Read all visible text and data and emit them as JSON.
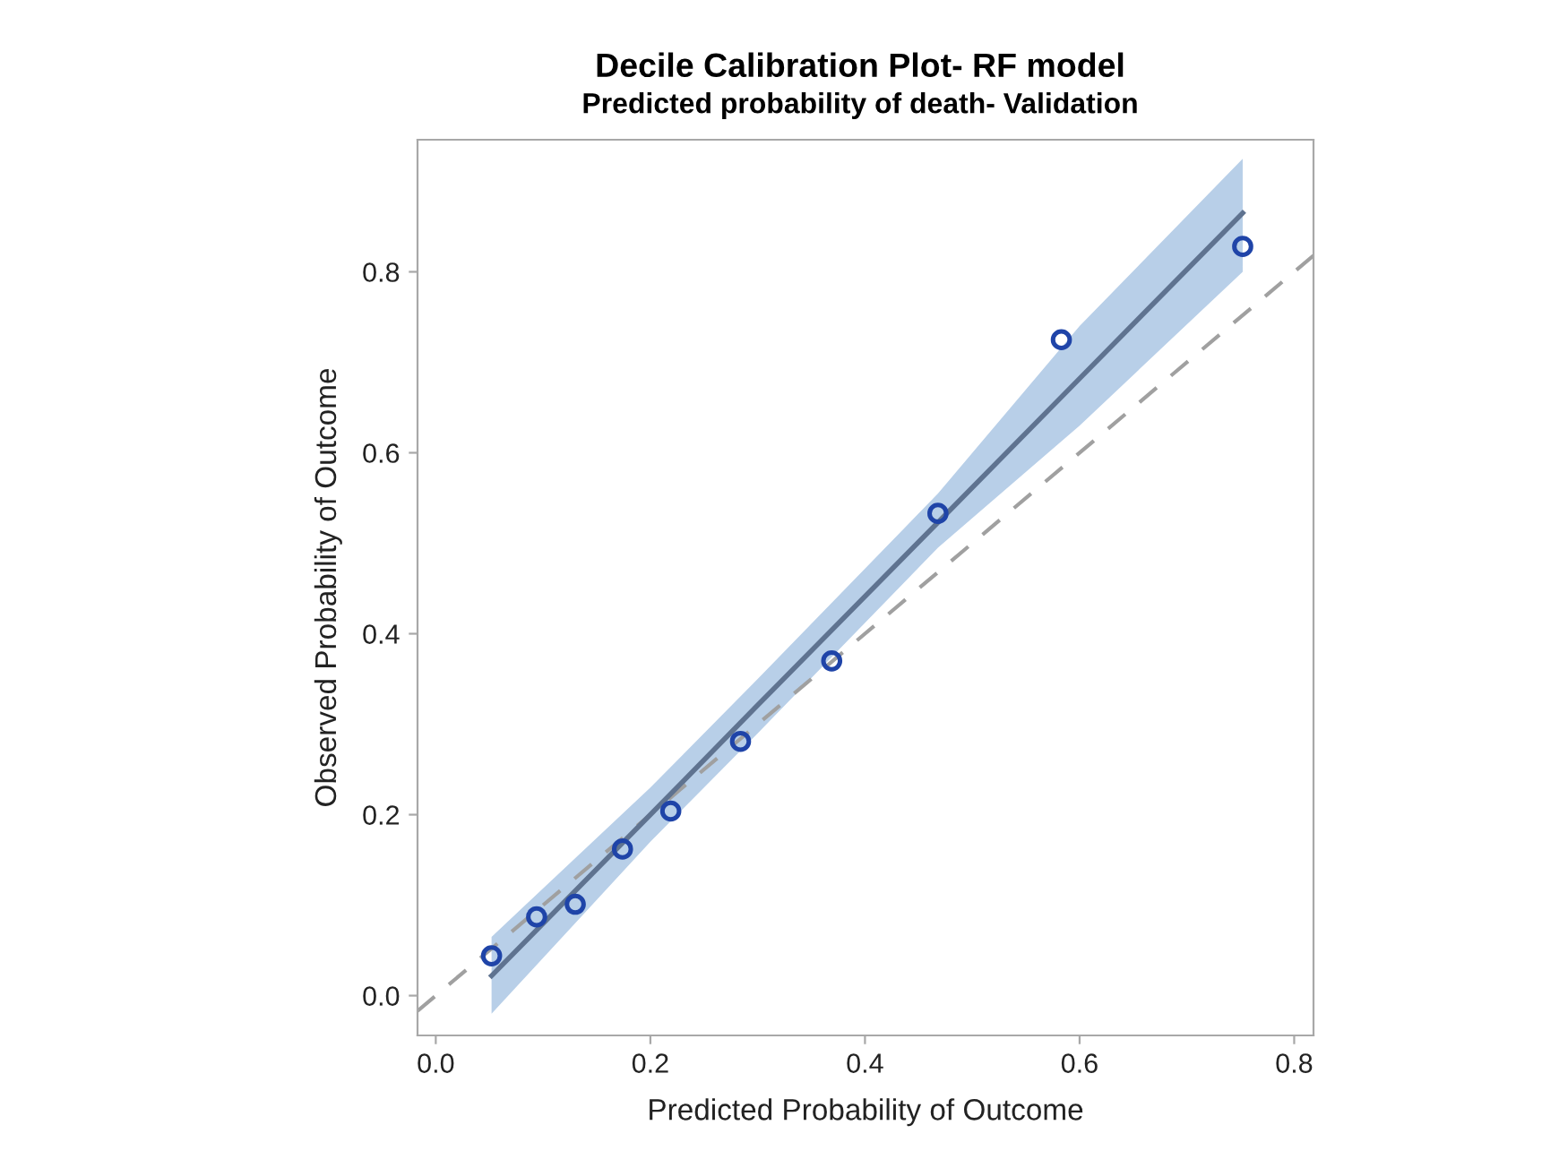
{
  "chart_data": {
    "type": "scatter",
    "title": "Decile Calibration Plot- RF model",
    "subtitle": "Predicted probability of death- Validation",
    "xlabel": "Predicted Probability of Outcome",
    "ylabel": "Observed Probability of Outcome",
    "xlim": [
      -0.017,
      0.818
    ],
    "ylim": [
      -0.044,
      0.946
    ],
    "xticks": [
      {
        "value": 0,
        "label": "0.0"
      },
      0.2,
      0.4,
      0.6,
      0.8
    ],
    "yticks": [
      {
        "value": 0,
        "label": "0.0"
      },
      0.2,
      0.4,
      0.6,
      0.8
    ],
    "grid": false,
    "legend": false,
    "series": [
      {
        "type": "line",
        "color": "#a0a0a0",
        "line_style": "dashed",
        "marker": "none",
        "x": [
          -0.017,
          0.818
        ],
        "values": [
          -0.017,
          0.818
        ]
      },
      {
        "type": "line",
        "color": "#5f7390",
        "line_style": "solid",
        "marker": "none",
        "x": [
          0.052,
          0.2,
          0.3,
          0.468,
          0.6,
          0.752
        ],
        "values": [
          0.022,
          0.2,
          0.321,
          0.523,
          0.682,
          0.865
        ],
        "lower": [
          -0.02,
          0.17,
          0.29,
          0.495,
          0.63,
          0.8
        ],
        "upper": [
          0.065,
          0.23,
          0.35,
          0.555,
          0.74,
          0.925
        ]
      },
      {
        "color": "#1f44a8",
        "marker": "circle",
        "x": [
          0.052,
          0.094,
          0.13,
          0.174,
          0.219,
          0.284,
          0.369,
          0.468,
          0.583,
          0.752
        ],
        "values": [
          0.044,
          0.087,
          0.101,
          0.162,
          0.204,
          0.281,
          0.37,
          0.533,
          0.725,
          0.828
        ]
      }
    ]
  }
}
